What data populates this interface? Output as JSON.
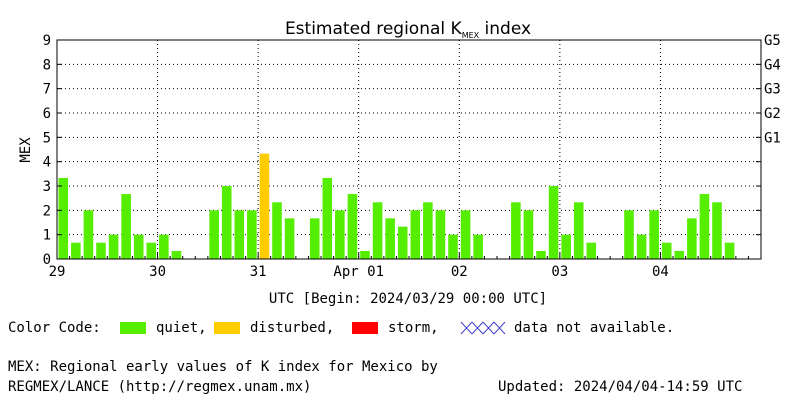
{
  "chart_data": {
    "type": "bar",
    "title": "Estimated regional K",
    "title_sub": "MEX",
    "title_tail": " index",
    "ylabel": "MEX",
    "xlabel": "UTC [Begin: 2024/03/29 00:00 UTC]",
    "ylim": [
      0,
      9
    ],
    "yticks": [
      "0",
      "1",
      "2",
      "3",
      "4",
      "5",
      "6",
      "7",
      "8",
      "9"
    ],
    "g_levels": [
      {
        "value": 5,
        "label": "G1"
      },
      {
        "value": 6,
        "label": "G2"
      },
      {
        "value": 7,
        "label": "G3"
      },
      {
        "value": 8,
        "label": "G4"
      },
      {
        "value": 9,
        "label": "G5"
      }
    ],
    "xlim": [
      0,
      56
    ],
    "x_ticks": [
      {
        "pos": 0,
        "label": "29"
      },
      {
        "pos": 8,
        "label": "30"
      },
      {
        "pos": 16,
        "label": "31"
      },
      {
        "pos": 24,
        "label": "Apr 01"
      },
      {
        "pos": 32,
        "label": "02"
      },
      {
        "pos": 40,
        "label": "03"
      },
      {
        "pos": 48,
        "label": "04"
      }
    ],
    "grid": true,
    "colors": {
      "quiet": "#55ee00",
      "disturbed": "#ffcc00",
      "storm": "#ff0000",
      "na": "#4444cc"
    },
    "values": [
      3.33,
      0.67,
      2.0,
      0.67,
      1.0,
      2.67,
      1.0,
      0.67,
      1.0,
      0.33,
      0,
      0,
      2.0,
      3.0,
      2.0,
      2.0,
      4.33,
      2.33,
      1.67,
      0,
      1.67,
      3.33,
      2.0,
      2.67,
      0.33,
      2.33,
      1.67,
      1.33,
      2.0,
      2.33,
      2.0,
      1.0,
      2.0,
      1.0,
      0,
      0,
      2.33,
      2.0,
      0.33,
      3.0,
      1.0,
      2.33,
      0.67,
      0,
      0,
      2.0,
      1.0,
      2.0,
      0.67,
      0.33,
      1.67,
      2.67,
      2.33,
      0.67
    ],
    "status": [
      "quiet",
      "quiet",
      "quiet",
      "quiet",
      "quiet",
      "quiet",
      "quiet",
      "quiet",
      "quiet",
      "quiet",
      "quiet",
      "quiet",
      "quiet",
      "quiet",
      "quiet",
      "quiet",
      "disturbed",
      "quiet",
      "quiet",
      "quiet",
      "quiet",
      "quiet",
      "quiet",
      "quiet",
      "quiet",
      "quiet",
      "quiet",
      "quiet",
      "quiet",
      "quiet",
      "quiet",
      "quiet",
      "quiet",
      "quiet",
      "quiet",
      "quiet",
      "quiet",
      "quiet",
      "quiet",
      "quiet",
      "quiet",
      "quiet",
      "quiet",
      "quiet",
      "quiet",
      "quiet",
      "quiet",
      "quiet",
      "quiet",
      "quiet",
      "quiet",
      "quiet",
      "quiet",
      "quiet"
    ]
  },
  "legend": {
    "title": "Color Code:",
    "quiet": "quiet,",
    "disturbed": "disturbed,",
    "storm": "storm,",
    "na": "data not available."
  },
  "footer": {
    "line1": "MEX: Regional early values of K index for Mexico by",
    "line2": "REGMEX/LANCE (http://regmex.unam.mx)",
    "updated": "Updated: 2024/04/04-14:59 UTC"
  }
}
